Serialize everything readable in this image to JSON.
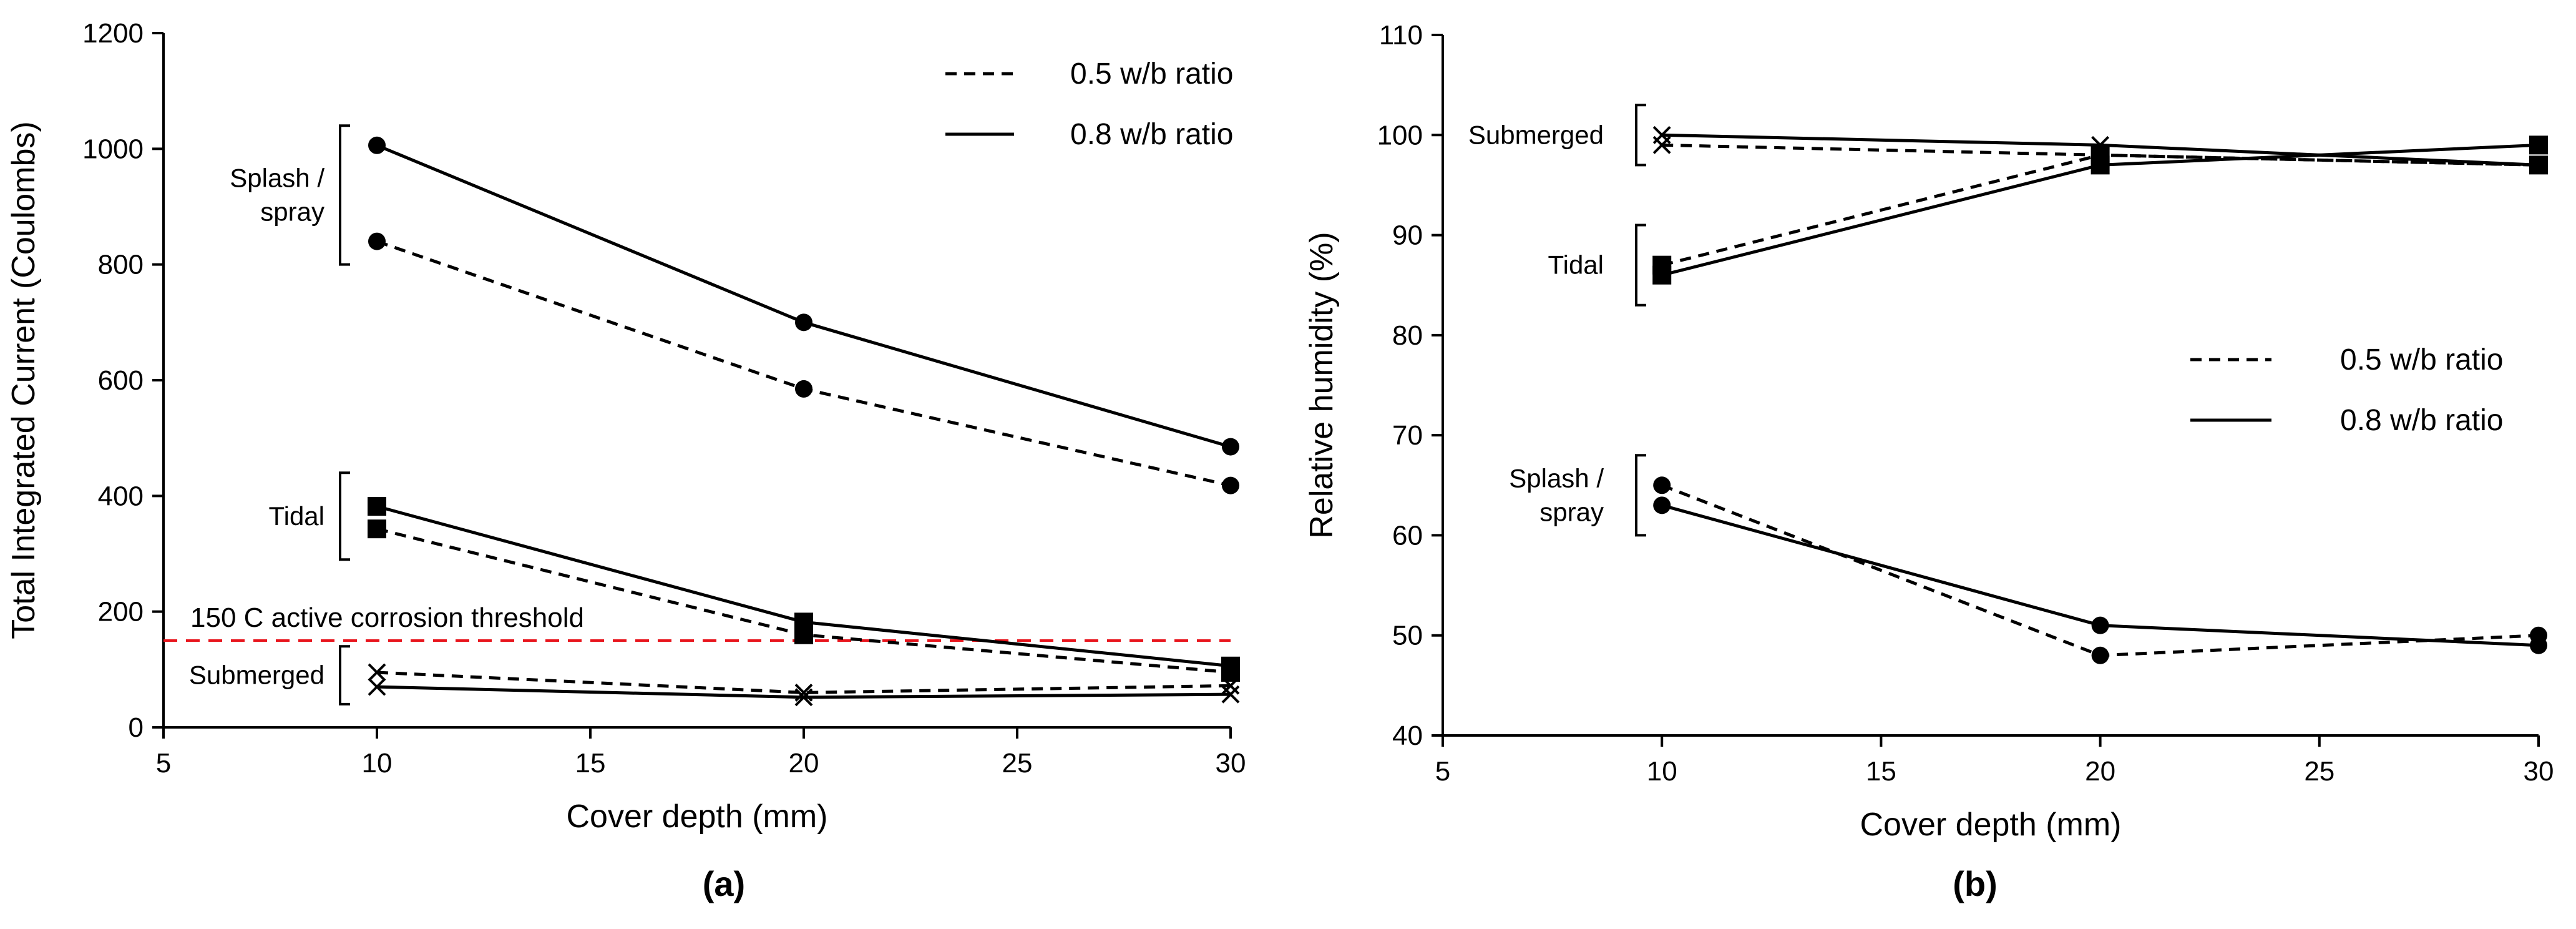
{
  "chart_data": [
    {
      "type": "line",
      "panel_label": "(a)",
      "xlabel": "Cover depth (mm)",
      "ylabel": "Total Integrated Current (Coulombs)",
      "xlim": [
        5,
        30
      ],
      "ylim": [
        0,
        1200
      ],
      "xticks": [
        5,
        10,
        15,
        20,
        25,
        30
      ],
      "yticks": [
        0,
        200,
        400,
        600,
        800,
        1000,
        1200
      ],
      "grid": false,
      "legend_position": "top-right",
      "legend": [
        {
          "label": "0.5 w/b ratio",
          "style": "dashed"
        },
        {
          "label": "0.8 w/b ratio",
          "style": "solid"
        }
      ],
      "threshold": {
        "value": 150,
        "label": "150 C active corrosion threshold",
        "color": "#e8141c"
      },
      "groups": [
        {
          "label": "Splash / spray",
          "label_lines": [
            "Splash /",
            "spray"
          ],
          "bracket": [
            800,
            1040
          ]
        },
        {
          "label": "Tidal",
          "label_lines": [
            "Tidal"
          ],
          "bracket": [
            290,
            440
          ]
        },
        {
          "label": "Submerged",
          "label_lines": [
            "Submerged"
          ],
          "bracket": [
            40,
            140
          ]
        }
      ],
      "x": [
        10,
        20,
        30
      ],
      "series": [
        {
          "group": "Splash / spray",
          "ratio": "0.5 w/b ratio",
          "style": "dashed",
          "marker": "circle",
          "values": [
            840,
            585,
            418
          ]
        },
        {
          "group": "Splash / spray",
          "ratio": "0.8 w/b ratio",
          "style": "solid",
          "marker": "circle",
          "values": [
            1006,
            700,
            485
          ]
        },
        {
          "group": "Tidal",
          "ratio": "0.5 w/b ratio",
          "style": "dashed",
          "marker": "square",
          "values": [
            343,
            160,
            95
          ]
        },
        {
          "group": "Tidal",
          "ratio": "0.8 w/b ratio",
          "style": "solid",
          "marker": "square",
          "values": [
            382,
            182,
            106
          ]
        },
        {
          "group": "Submerged",
          "ratio": "0.5 w/b ratio",
          "style": "dashed",
          "marker": "x",
          "values": [
            95,
            60,
            72
          ]
        },
        {
          "group": "Submerged",
          "ratio": "0.8 w/b ratio",
          "style": "solid",
          "marker": "x",
          "values": [
            70,
            52,
            57
          ]
        }
      ]
    },
    {
      "type": "line",
      "panel_label": "(b)",
      "xlabel": "Cover depth (mm)",
      "ylabel": "Relative humidity (%)",
      "xlim": [
        5,
        30
      ],
      "ylim": [
        40,
        110
      ],
      "xticks": [
        5,
        10,
        15,
        20,
        25,
        30
      ],
      "yticks": [
        40,
        50,
        60,
        70,
        80,
        90,
        100,
        110
      ],
      "grid": false,
      "legend_position": "center-right",
      "legend": [
        {
          "label": "0.5 w/b ratio",
          "style": "dashed"
        },
        {
          "label": "0.8 w/b ratio",
          "style": "solid"
        }
      ],
      "groups": [
        {
          "label": "Submerged",
          "label_lines": [
            "Submerged"
          ],
          "bracket": [
            97,
            103
          ]
        },
        {
          "label": "Tidal",
          "label_lines": [
            "Tidal"
          ],
          "bracket": [
            83,
            91
          ]
        },
        {
          "label": "Splash / spray",
          "label_lines": [
            "Splash /",
            "spray"
          ],
          "bracket": [
            60,
            68
          ]
        }
      ],
      "x": [
        10,
        20,
        30
      ],
      "series": [
        {
          "group": "Submerged",
          "ratio": "0.5 w/b ratio",
          "style": "dashed",
          "marker": "x",
          "values": [
            99,
            98,
            97
          ]
        },
        {
          "group": "Submerged",
          "ratio": "0.8 w/b ratio",
          "style": "solid",
          "marker": "x",
          "values": [
            100,
            99,
            97
          ]
        },
        {
          "group": "Tidal",
          "ratio": "0.5 w/b ratio",
          "style": "dashed",
          "marker": "square",
          "values": [
            87,
            98,
            97
          ]
        },
        {
          "group": "Tidal",
          "ratio": "0.8 w/b ratio",
          "style": "solid",
          "marker": "square",
          "values": [
            86,
            97,
            99
          ]
        },
        {
          "group": "Splash / spray",
          "ratio": "0.5 w/b ratio",
          "style": "dashed",
          "marker": "circle",
          "values": [
            65,
            48,
            50
          ]
        },
        {
          "group": "Splash / spray",
          "ratio": "0.8 w/b ratio",
          "style": "solid",
          "marker": "circle",
          "values": [
            63,
            51,
            49
          ]
        }
      ]
    }
  ]
}
